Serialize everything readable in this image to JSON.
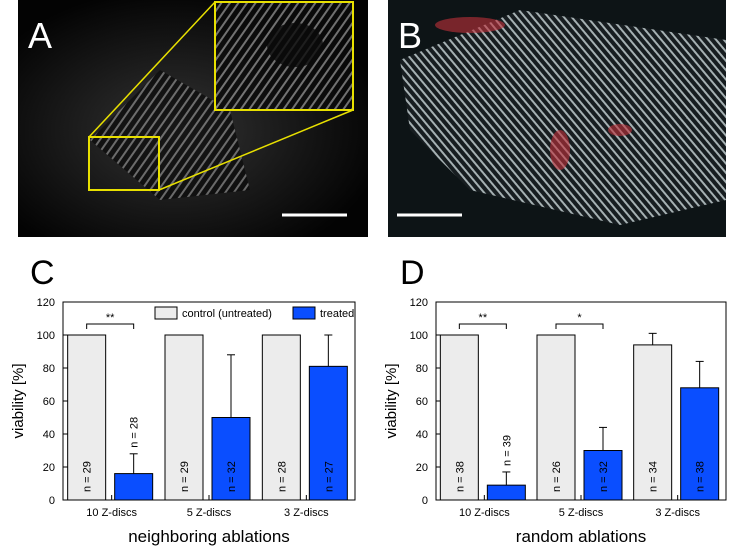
{
  "image_panels": [
    {
      "label": "A"
    },
    {
      "label": "B"
    }
  ],
  "chart_data": [
    {
      "type": "bar",
      "panel_label": "C",
      "xlabel": "neighboring ablations",
      "ylabel": "viability [%]",
      "categories": [
        "10 Z-discs",
        "5 Z-discs",
        "3 Z-discs"
      ],
      "series": [
        {
          "name": "control (untreated)",
          "color": "#ececec",
          "values": [
            100,
            100,
            100
          ],
          "errors": [
            null,
            null,
            null
          ],
          "n_labels": [
            "n = 29",
            "n = 29",
            "n = 28"
          ]
        },
        {
          "name": "treated",
          "color": "#0a4eff",
          "values": [
            16,
            50,
            81
          ],
          "errors": [
            12,
            38,
            19
          ],
          "n_labels": [
            "n = 28",
            "n = 32",
            "n = 27"
          ]
        }
      ],
      "significance": [
        "**",
        null,
        null
      ],
      "ylim": [
        0,
        120
      ],
      "yticks": [
        0,
        20,
        40,
        60,
        80,
        100,
        120
      ],
      "legend": "upper right"
    },
    {
      "type": "bar",
      "panel_label": "D",
      "xlabel": "random ablations",
      "ylabel": "viability [%]",
      "categories": [
        "10 Z-discs",
        "5 Z-discs",
        "3 Z-discs"
      ],
      "series": [
        {
          "name": "control (untreated)",
          "color": "#ececec",
          "values": [
            100,
            100,
            94
          ],
          "errors": [
            null,
            null,
            7
          ],
          "n_labels": [
            "n = 38",
            "n = 26",
            "n = 34"
          ]
        },
        {
          "name": "treated",
          "color": "#0a4eff",
          "values": [
            9,
            30,
            68
          ],
          "errors": [
            8,
            14,
            16
          ],
          "n_labels": [
            "n = 39",
            "n = 32",
            "n = 38"
          ]
        }
      ],
      "significance": [
        "**",
        "*",
        null
      ],
      "ylim": [
        0,
        120
      ],
      "yticks": [
        0,
        20,
        40,
        60,
        80,
        100,
        120
      ],
      "legend": "none"
    }
  ]
}
